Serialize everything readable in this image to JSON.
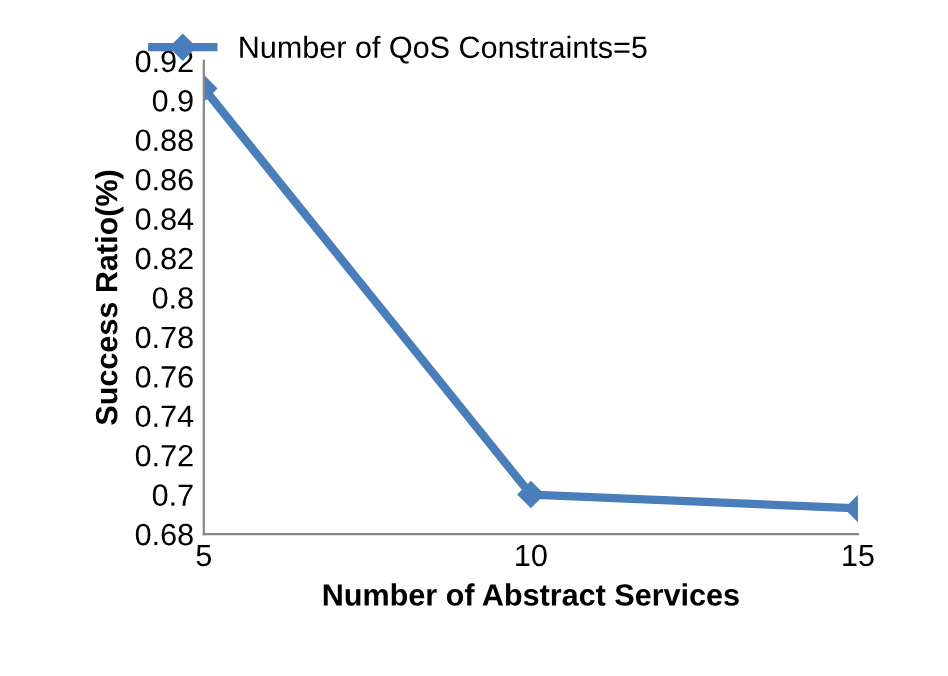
{
  "chart_data": {
    "type": "line",
    "xlabel": "Number of Abstract Services",
    "ylabel": "Success Ratio(%)",
    "x": [
      5,
      10,
      15
    ],
    "series": [
      {
        "name": "Number of QoS Constraints=5",
        "color": "#4a7ebb",
        "values": [
          0.906,
          0.7,
          0.693
        ]
      }
    ],
    "xlim": [
      5,
      15
    ],
    "xticks": [
      5,
      10,
      15
    ],
    "ylim": [
      0.68,
      0.92
    ],
    "yticks": [
      0.68,
      0.7,
      0.72,
      0.74,
      0.76,
      0.78,
      0.8,
      0.82,
      0.84,
      0.86,
      0.88,
      0.9,
      0.92
    ],
    "grid": false,
    "legend": "top",
    "marker": "diamond",
    "line_style": "solid"
  }
}
